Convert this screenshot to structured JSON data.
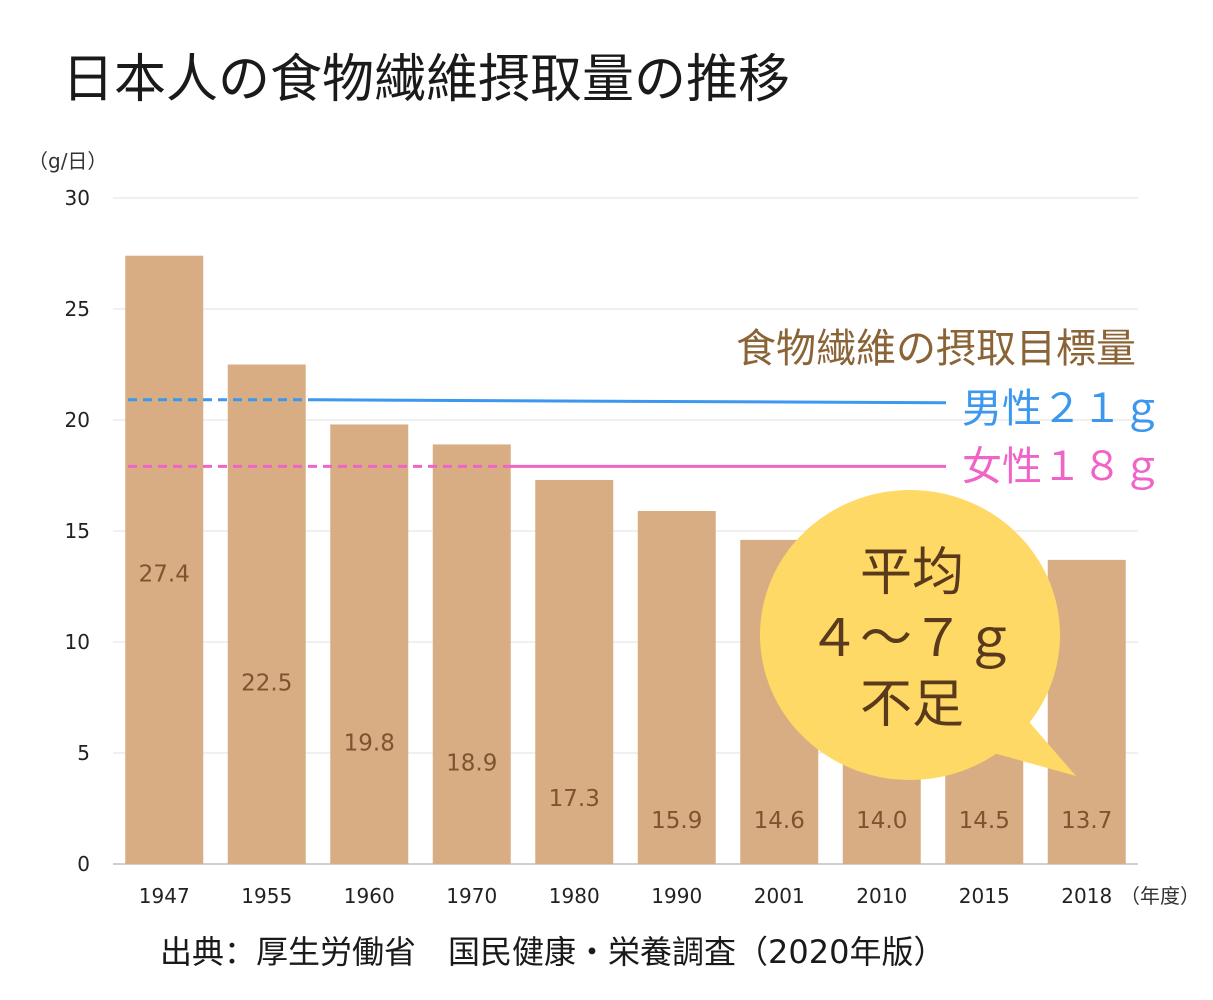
{
  "title": "日本人の食物繊維摂取量の推移",
  "source": "出典：厚生労働省　国民健康・栄養調査（2020年版）",
  "chart_data": {
    "type": "bar",
    "title": "日本人の食物繊維摂取量の推移",
    "ylabel": "（g/日）",
    "xlabel": "（年度）",
    "categories": [
      "1947",
      "1955",
      "1960",
      "1970",
      "1980",
      "1990",
      "2001",
      "2010",
      "2015",
      "2018"
    ],
    "values": [
      27.4,
      22.5,
      19.8,
      18.9,
      17.3,
      15.9,
      14.6,
      14.0,
      14.5,
      13.7
    ],
    "value_labels": [
      "27.4",
      "22.5",
      "19.8",
      "18.9",
      "17.3",
      "15.9",
      "14.6",
      "14.0",
      "14.5",
      "13.7"
    ],
    "ylim": [
      0,
      30
    ],
    "yticks": [
      0,
      5,
      10,
      15,
      20,
      25,
      30
    ],
    "grid": true,
    "reference_lines": {
      "title": "食物繊維の摂取目標量",
      "male": {
        "label": "男性２１ｇ",
        "value": 21
      },
      "female": {
        "label": "女性１８ｇ",
        "value": 18
      }
    },
    "annotation": [
      "平均",
      "４～７ｇ",
      "不足"
    ],
    "colors": {
      "bar": "#d8ad83",
      "male": "#3c97ee",
      "female": "#f064c8",
      "bubble": "#ffd966",
      "value_label": "#7b5530"
    }
  }
}
